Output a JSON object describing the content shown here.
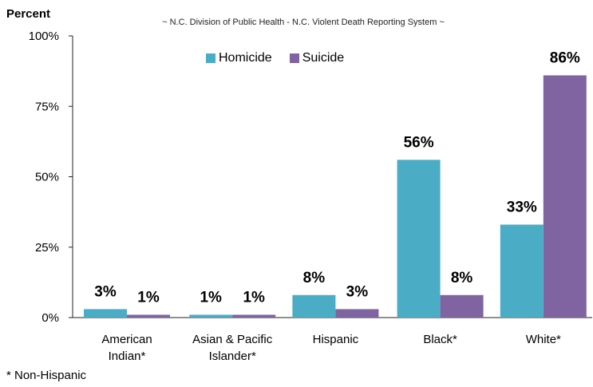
{
  "chart_data": {
    "type": "bar",
    "title": "",
    "subtitle": "~ N.C. Division of Public Health - N.C. Violent Death Reporting System ~",
    "ylabel": "Percent",
    "xlabel": "",
    "ylim": [
      0,
      100
    ],
    "yticks": [
      {
        "value": 0,
        "label": "0%"
      },
      {
        "value": 25,
        "label": "25%"
      },
      {
        "value": 50,
        "label": "50%"
      },
      {
        "value": 75,
        "label": "75%"
      },
      {
        "value": 100,
        "label": "100%"
      }
    ],
    "categories": [
      [
        "American",
        "Indian*"
      ],
      [
        "Asian & Pacific",
        "Islander*"
      ],
      [
        "Hispanic"
      ],
      [
        "Black*"
      ],
      [
        "White*"
      ]
    ],
    "series": [
      {
        "name": "Homicide",
        "color": "#4BACC6",
        "values": [
          3,
          1,
          8,
          56,
          33
        ],
        "labels": [
          "3%",
          "1%",
          "8%",
          "56%",
          "33%"
        ]
      },
      {
        "name": "Suicide",
        "color": "#8064A2",
        "values": [
          1,
          1,
          3,
          8,
          86
        ],
        "labels": [
          "1%",
          "1%",
          "3%",
          "8%",
          "86%"
        ]
      }
    ],
    "grid": false,
    "legend_position": "top-center",
    "footnote": "* Non-Hispanic"
  }
}
